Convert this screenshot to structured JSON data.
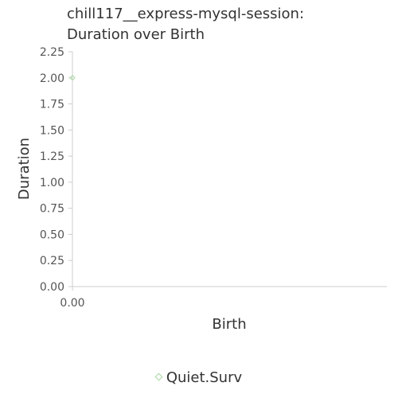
{
  "chart_data": {
    "type": "scatter",
    "title_lines": [
      "chill117__express-mysql-session:",
      "Duration over Birth"
    ],
    "xlabel": "Birth",
    "ylabel": "Duration",
    "x_ticks": [
      "0.00"
    ],
    "y_ticks": [
      "0.00",
      "0.25",
      "0.50",
      "0.75",
      "1.00",
      "1.25",
      "1.50",
      "1.75",
      "2.00",
      "2.25"
    ],
    "xlim": [
      0,
      1
    ],
    "ylim": [
      0,
      2.25
    ],
    "grid": false,
    "legend_position": "bottom",
    "series": [
      {
        "name": "Quiet.Surv",
        "color": "#a6d9a0",
        "marker": "diamond",
        "points": [
          {
            "x": 0,
            "y": 2
          }
        ]
      }
    ]
  }
}
